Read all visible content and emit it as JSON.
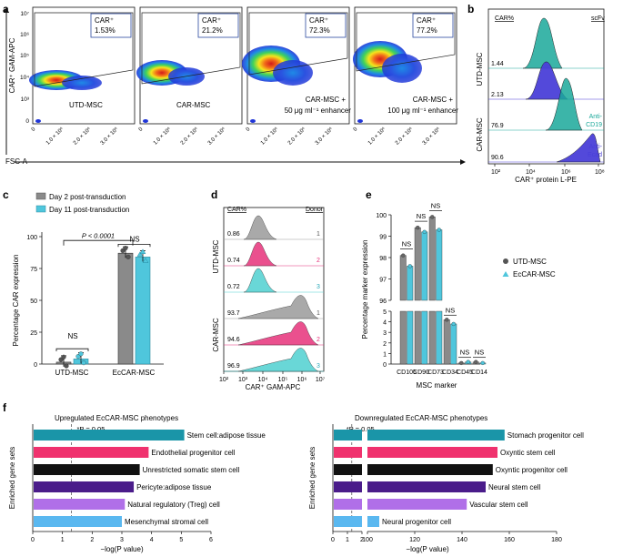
{
  "panel_letters": [
    "a",
    "b",
    "c",
    "d",
    "e",
    "f"
  ],
  "panel_a": {
    "y_axis_label": "CAR⁺ GAM-APC",
    "x_axis_label": "FSC-A",
    "y_ticks": [
      "10⁷",
      "10⁶",
      "10⁵",
      "10⁴",
      "10³",
      "0"
    ],
    "x_ticks": [
      "0",
      "1.0 × 10⁶",
      "2.0 × 10⁶",
      "3.0 × 10⁶"
    ],
    "gate_label": "CAR⁺",
    "plots": [
      {
        "name": "UTD-MSC",
        "sub": "",
        "percent": "1.53%"
      },
      {
        "name": "CAR-MSC",
        "sub": "",
        "percent": "21.2%"
      },
      {
        "name": "CAR-MSC +",
        "sub": "50 μg ml⁻¹ enhancer",
        "percent": "72.3%"
      },
      {
        "name": "CAR-MSC +",
        "sub": "100 μg ml⁻¹ enhancer",
        "percent": "77.2%"
      }
    ]
  },
  "panel_b": {
    "header_left": "CAR%",
    "header_right": "scFv",
    "group_labels": [
      "UTD-MSC",
      "CAR-MSC"
    ],
    "values": [
      "1.44",
      "2.13",
      "76.9",
      "90.6"
    ],
    "trace_labels": [
      "Anti-\nCD19",
      "Anti-\nEcad"
    ],
    "x_ticks": [
      "10²",
      "10⁴",
      "10⁶",
      "10⁸"
    ],
    "x_axis_label": "CAR⁺ protein L-PE",
    "colors": {
      "teal": "#1aa89a",
      "blue": "#4a3fd8"
    }
  },
  "panel_c": {
    "legend": [
      "Day 2 post-transduction",
      "Day 11 post-transduction"
    ],
    "colors": {
      "day2": "#8a8a8a",
      "day11": "#4fc6dc"
    },
    "pvalue": "P < 0.0001",
    "ns": "NS",
    "ylabel": "Percentage CAR expression",
    "yticks": [
      "0",
      "25",
      "50",
      "75",
      "100"
    ],
    "categories": [
      "UTD-MSC",
      "EcCAR-MSC"
    ]
  },
  "panel_d": {
    "header_left": "CAR%",
    "header_right": "Donor",
    "group_labels": [
      "UTD-MSC",
      "CAR-MSC"
    ],
    "values": [
      "0.86",
      "0.74",
      "0.72",
      "93.7",
      "94.6",
      "96.9"
    ],
    "donors": [
      "1",
      "2",
      "3",
      "1",
      "2",
      "3"
    ],
    "x_ticks": [
      "10²",
      "10³",
      "10⁴",
      "10⁵",
      "10⁶",
      "10⁷"
    ],
    "x_axis_label": "CAR⁺ GAM-APC",
    "colors": [
      "#9a9a9a",
      "#e6317a",
      "#4fd0d0"
    ]
  },
  "panel_e": {
    "legend": [
      "UTD-MSC",
      "EcCAR-MSC"
    ],
    "ylabel": "Percentage marker expression",
    "xlabel": "MSC marker",
    "yticks_top": [
      "96",
      "97",
      "98",
      "99",
      "100"
    ],
    "yticks_bottom": [
      "0",
      "1",
      "2",
      "3",
      "4",
      "5"
    ],
    "categories": [
      "CD105",
      "CD90",
      "CD73",
      "CD34",
      "CD45",
      "CD14"
    ],
    "ns": "NS",
    "colors": {
      "utd": "#8a8a8a",
      "eccar": "#4fc6dc"
    }
  },
  "panel_f": {
    "left_title": "Upregulated EcCAR-MSC phenotypes",
    "right_title": "Downregulated EcCAR-MSC phenotypes",
    "ylabel": "Enriched gene sets",
    "xlabel": "−log(P value)",
    "pline": "*P = 0.05",
    "left_xticks": [
      "0",
      "1",
      "2",
      "3",
      "4",
      "5",
      "6"
    ],
    "right_xticks_a": [
      "0",
      "1",
      "2"
    ],
    "right_xticks_b": [
      "100",
      "120",
      "140",
      "160",
      "180"
    ]
  },
  "chart_data": [
    {
      "type": "scatter",
      "panel": "a",
      "title": "",
      "xlabel": "FSC-A",
      "ylabel": "CAR⁺ GAM-APC",
      "series": [
        {
          "name": "UTD-MSC",
          "values": [
            1.53
          ]
        },
        {
          "name": "CAR-MSC",
          "values": [
            21.2
          ]
        },
        {
          "name": "CAR-MSC + 50 μg ml⁻¹ enhancer",
          "values": [
            72.3
          ]
        },
        {
          "name": "CAR-MSC + 100 μg ml⁻¹ enhancer",
          "values": [
            77.2
          ]
        }
      ]
    },
    {
      "type": "bar",
      "panel": "c",
      "categories": [
        "UTD-MSC",
        "EcCAR-MSC"
      ],
      "ylabel": "Percentage CAR expression",
      "ylim": [
        0,
        100
      ],
      "series": [
        {
          "name": "Day 2 post-transduction",
          "values": [
            1.5,
            87
          ]
        },
        {
          "name": "Day 11 post-transduction",
          "values": [
            4,
            84
          ]
        }
      ]
    },
    {
      "type": "bar",
      "panel": "e",
      "categories": [
        "CD105",
        "CD90",
        "CD73",
        "CD34",
        "CD45",
        "CD14"
      ],
      "ylabel": "Percentage marker expression",
      "xlabel": "MSC marker",
      "series": [
        {
          "name": "UTD-MSC",
          "values": [
            98.1,
            99.4,
            99.9,
            4.2,
            0.1,
            0.2
          ]
        },
        {
          "name": "EcCAR-MSC",
          "values": [
            97.6,
            99.2,
            99.3,
            3.8,
            0.2,
            0.1
          ]
        }
      ]
    },
    {
      "type": "bar",
      "panel": "f-left",
      "title": "Upregulated EcCAR-MSC phenotypes",
      "xlabel": "−log(P value)",
      "xlim": [
        0,
        6
      ],
      "categories": [
        "Stem cell:adipose tissue",
        "Endothelial progenitor cell",
        "Unrestricted somatic stem cell",
        "Pericyte:adipose tissue",
        "Natural regulatory (Treg) cell",
        "Mesenchymal stromal cell"
      ],
      "values": [
        5.1,
        3.9,
        3.6,
        3.4,
        3.1,
        3.0
      ],
      "colors": [
        "#1a95a8",
        "#f0326e",
        "#111111",
        "#4a1c8a",
        "#b06fe8",
        "#5ab8f0"
      ]
    },
    {
      "type": "bar",
      "panel": "f-right",
      "title": "Downregulated EcCAR-MSC phenotypes",
      "xlabel": "−log(P value)",
      "categories": [
        "Stomach progenitor cell",
        "Oxyntic stem cell",
        "Oxyntic progenitor cell",
        "Neural stem cell",
        "Vascular stem cell",
        "Neural progenitor cell"
      ],
      "values": [
        158,
        155,
        153,
        150,
        142,
        105
      ],
      "colors": [
        "#1a95a8",
        "#f0326e",
        "#111111",
        "#4a1c8a",
        "#b06fe8",
        "#5ab8f0"
      ]
    }
  ]
}
